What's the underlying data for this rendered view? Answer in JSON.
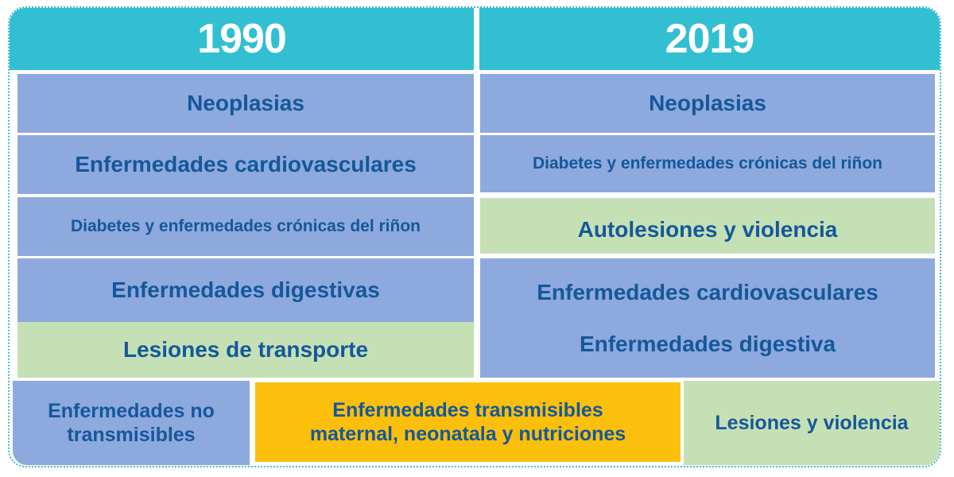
{
  "header": {
    "left_year": "1990",
    "right_year": "2019"
  },
  "col_1990": [
    "Neoplasias",
    "Enfermedades cardiovasculares",
    "Diabetes y enfermedades crónicas del riñon",
    "Enfermedades digestivas",
    "Lesiones de transporte"
  ],
  "col_2019": [
    "Neoplasias",
    "Diabetes y enfermedades crónicas del riñon",
    "Autolesiones y violencia",
    "Enfermedades cardiovasculares",
    "Enfermedades digestiva"
  ],
  "legend": {
    "noncommunicable_line1": "Enfermedades no",
    "noncommunicable_line2": "transmisibles",
    "communicable_line1": "Enfermedades transmisibles",
    "communicable_line2": "maternal, neonatala y nutriciones",
    "injuries": "Lesiones y violencia"
  },
  "colors": {
    "header": "#32bfd1",
    "noncommunicable": "#8ea9dd",
    "communicable": "#fcbf0b",
    "injuries": "#c6e0b5",
    "text": "#14589a"
  }
}
